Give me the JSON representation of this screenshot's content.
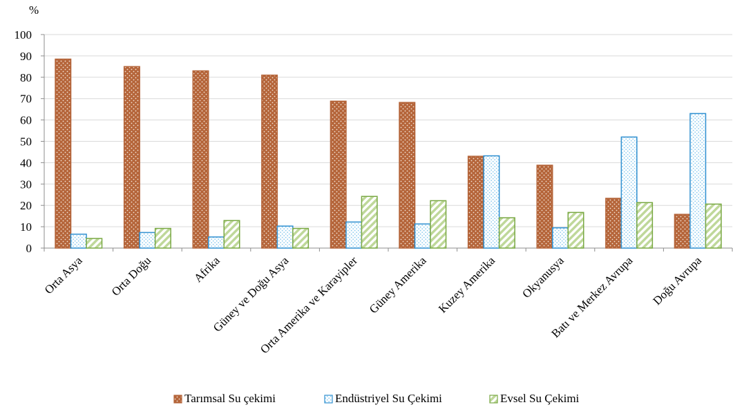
{
  "chart_data": {
    "type": "bar",
    "ylabel": "%",
    "ylim": [
      0,
      100
    ],
    "yticks": [
      0,
      10,
      20,
      30,
      40,
      50,
      60,
      70,
      80,
      90,
      100
    ],
    "grid": true,
    "legend_position": "bottom",
    "categories": [
      "Orta Asya",
      "Orta Doğu",
      "Afrika",
      "Güney ve Doğu Asya",
      "Orta Amerika ve Karayipler",
      "Güney Amerika",
      "Kuzey Amerika",
      "Okyanusya",
      "Batı ve Merkez Avrupa",
      "Doğu Avrupa"
    ],
    "series": [
      {
        "name": "Tarımsal Su çekimi",
        "color": "#b5653a",
        "pattern": "brick-dots",
        "values": [
          88.5,
          85,
          83,
          81,
          68.8,
          68.2,
          43,
          38.8,
          23.3,
          15.8
        ]
      },
      {
        "name": "Endüstriyel Su Çekimi",
        "color": "#2e8fd0",
        "pattern": "light-dots",
        "values": [
          6.5,
          7.3,
          5.2,
          10.3,
          12.2,
          11.3,
          43.2,
          9.5,
          52,
          63
        ]
      },
      {
        "name": "Evsel Su Çekimi",
        "color": "#79a843",
        "pattern": "diagonal-stripes",
        "values": [
          4.5,
          9.2,
          12.9,
          9.2,
          24.2,
          22.2,
          14.2,
          16.7,
          21.3,
          20.6
        ]
      }
    ]
  }
}
